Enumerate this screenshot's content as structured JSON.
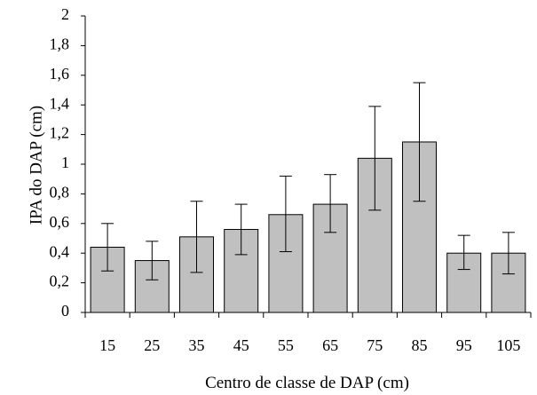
{
  "chart_data": {
    "type": "bar",
    "title": "",
    "xlabel": "Centro de classe de DAP (cm)",
    "ylabel": "IPA do DAP (cm)",
    "categories": [
      "15",
      "25",
      "35",
      "45",
      "55",
      "65",
      "75",
      "85",
      "95",
      "105"
    ],
    "values": [
      0.44,
      0.35,
      0.51,
      0.56,
      0.66,
      0.73,
      1.04,
      1.15,
      0.4,
      0.4
    ],
    "error_upper": [
      0.6,
      0.48,
      0.75,
      0.73,
      0.92,
      0.93,
      1.39,
      1.55,
      0.52,
      0.54
    ],
    "error_lower": [
      0.28,
      0.22,
      0.27,
      0.39,
      0.41,
      0.54,
      0.69,
      0.75,
      0.29,
      0.26
    ],
    "ylim": [
      0,
      2
    ],
    "yticks": [
      "0",
      "0,2",
      "0,4",
      "0,6",
      "0,8",
      "1",
      "1,2",
      "1,4",
      "1,6",
      "1,8",
      "2"
    ],
    "grid": false,
    "bar_color": "#c0c0c0",
    "bar_edge_color": "#000000"
  }
}
